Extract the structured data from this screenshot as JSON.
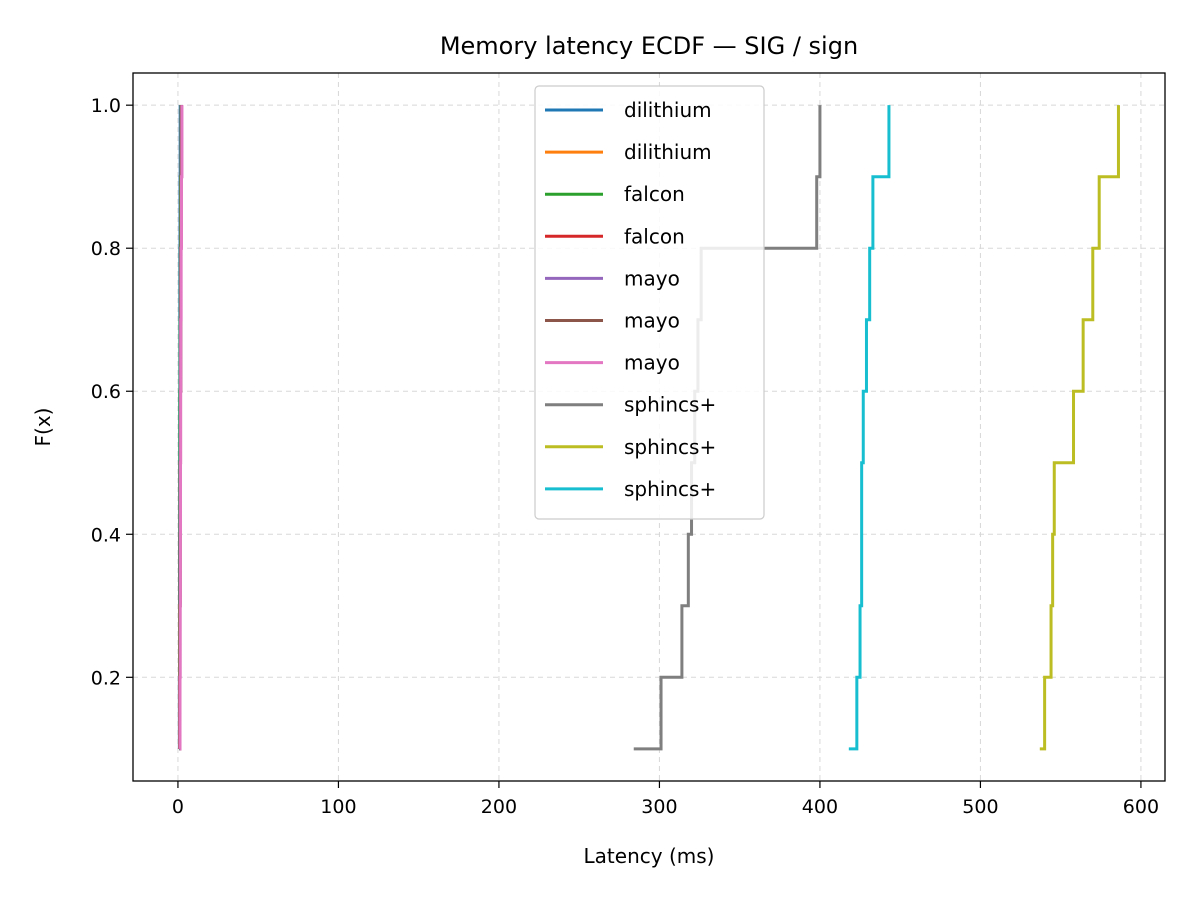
{
  "chart_data": {
    "type": "line",
    "subtype": "ecdf-step",
    "title": "Memory latency ECDF — SIG / sign",
    "xlabel": "Latency (ms)",
    "ylabel": "F(x)",
    "xlim": [
      -28,
      615
    ],
    "ylim": [
      0.055,
      1.045
    ],
    "xticks": [
      0,
      100,
      200,
      300,
      400,
      500,
      600
    ],
    "yticks": [
      0.2,
      0.4,
      0.6,
      0.8,
      1.0
    ],
    "xtick_labels": [
      "0",
      "100",
      "200",
      "300",
      "400",
      "500",
      "600"
    ],
    "ytick_labels": [
      "0.2",
      "0.4",
      "0.6",
      "0.8",
      "1.0"
    ],
    "grid": true,
    "legend_position": "upper-center",
    "series": [
      {
        "name": "dilithium",
        "color": "#1f77b4",
        "x": [
          0.8,
          0.9,
          1.0,
          1.0,
          1.1,
          1.1,
          1.2,
          1.2,
          1.3,
          1.4
        ],
        "y": [
          0.1,
          0.2,
          0.3,
          0.4,
          0.5,
          0.6,
          0.7,
          0.8,
          0.9,
          1.0
        ]
      },
      {
        "name": "dilithium",
        "color": "#ff7f0e",
        "x": [
          1.0,
          1.1,
          1.2,
          1.3,
          1.4,
          1.5,
          1.6,
          1.7,
          1.8,
          2.0
        ],
        "y": [
          0.1,
          0.2,
          0.3,
          0.4,
          0.5,
          0.6,
          0.7,
          0.8,
          0.9,
          1.0
        ]
      },
      {
        "name": "falcon",
        "color": "#2ca02c",
        "x": [
          0.9,
          1.0,
          1.0,
          1.1,
          1.2,
          1.3,
          1.4,
          1.5,
          1.6,
          1.8
        ],
        "y": [
          0.1,
          0.2,
          0.3,
          0.4,
          0.5,
          0.6,
          0.7,
          0.8,
          0.9,
          1.0
        ]
      },
      {
        "name": "falcon",
        "color": "#d62728",
        "x": [
          1.0,
          1.1,
          1.2,
          1.3,
          1.5,
          1.6,
          1.7,
          1.8,
          2.0,
          2.2
        ],
        "y": [
          0.1,
          0.2,
          0.3,
          0.4,
          0.5,
          0.6,
          0.7,
          0.8,
          0.9,
          1.0
        ]
      },
      {
        "name": "mayo",
        "color": "#9467bd",
        "x": [
          1.0,
          1.2,
          1.3,
          1.4,
          1.5,
          1.6,
          1.7,
          1.8,
          1.9,
          2.0
        ],
        "y": [
          0.1,
          0.2,
          0.3,
          0.4,
          0.5,
          0.6,
          0.7,
          0.8,
          0.9,
          1.0
        ]
      },
      {
        "name": "mayo",
        "color": "#8c564b",
        "x": [
          1.1,
          1.2,
          1.3,
          1.4,
          1.5,
          1.6,
          1.8,
          1.9,
          2.0,
          2.1
        ],
        "y": [
          0.1,
          0.2,
          0.3,
          0.4,
          0.5,
          0.6,
          0.7,
          0.8,
          0.9,
          1.0
        ]
      },
      {
        "name": "mayo",
        "color": "#e377c2",
        "x": [
          1.2,
          1.3,
          1.4,
          1.5,
          1.6,
          1.7,
          1.8,
          2.0,
          2.2,
          2.5
        ],
        "y": [
          0.1,
          0.2,
          0.3,
          0.4,
          0.5,
          0.6,
          0.7,
          0.8,
          0.9,
          1.0
        ]
      },
      {
        "name": "sphincs+",
        "color": "#7f7f7f",
        "x": [
          284,
          301,
          314,
          318,
          320,
          322,
          324,
          326,
          398,
          400
        ],
        "y": [
          0.1,
          0.2,
          0.3,
          0.4,
          0.5,
          0.6,
          0.7,
          0.8,
          0.9,
          1.0
        ]
      },
      {
        "name": "sphincs+",
        "color": "#bcbd22",
        "x": [
          537,
          540,
          544,
          545,
          546,
          558,
          564,
          570,
          574,
          586
        ],
        "y": [
          0.1,
          0.2,
          0.3,
          0.4,
          0.5,
          0.6,
          0.7,
          0.8,
          0.9,
          1.0
        ]
      },
      {
        "name": "sphincs+",
        "color": "#17becf",
        "x": [
          418,
          423,
          425,
          426,
          426,
          427,
          429,
          431,
          433,
          443
        ],
        "y": [
          0.1,
          0.2,
          0.3,
          0.4,
          0.5,
          0.6,
          0.7,
          0.8,
          0.9,
          1.0
        ]
      }
    ]
  }
}
